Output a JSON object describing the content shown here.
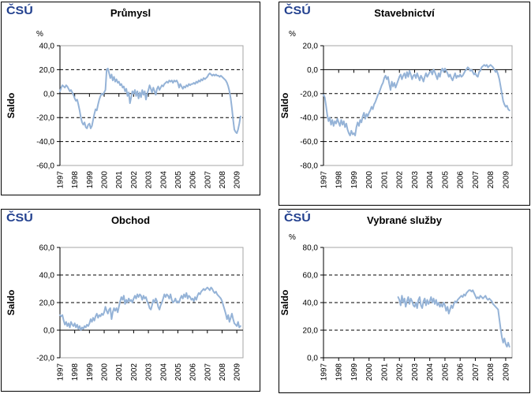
{
  "logo": {
    "text": "ČSÚ",
    "color": "#23418F"
  },
  "chart_data": [
    {
      "type": "line",
      "title": "Průmysl",
      "unit_label": "%",
      "ylabel": "Saldo",
      "ylim": [
        -60,
        40
      ],
      "yticks": [
        40,
        20,
        0,
        -20,
        -40,
        -60
      ],
      "ytick_labels": [
        "40,0",
        "20,0",
        "0,0",
        "-20,0",
        "-40,0",
        "-60,0"
      ],
      "xlim": [
        1997,
        2009.42
      ],
      "xtick_labels": [
        "1997",
        "1998",
        "1999",
        "2000",
        "2001",
        "2002",
        "2003",
        "2004",
        "2005",
        "2006",
        "2007",
        "2008",
        "2009"
      ],
      "grid": "horizontal dashed, solid line at zero",
      "legend": "none",
      "line_color": "#95B3D7",
      "series": [
        {
          "name": "Saldo",
          "start_year": 1997,
          "interval": "monthly",
          "values": [
            2,
            5,
            7,
            6,
            5,
            7,
            6,
            4,
            2,
            3,
            1,
            -1,
            -4,
            -6,
            -5,
            -9,
            -14,
            -20,
            -24,
            -26,
            -24,
            -28,
            -29,
            -26,
            -25,
            -29,
            -27,
            -22,
            -17,
            -13,
            -14,
            -9,
            -5,
            -2,
            0,
            -1,
            1,
            3,
            20,
            21,
            17,
            13,
            16,
            11,
            14,
            10,
            12,
            9,
            10,
            7,
            8,
            5,
            6,
            2,
            4,
            -2,
            1,
            -8,
            -3,
            2,
            0,
            3,
            -2,
            2,
            -4,
            1,
            -3,
            3,
            -1,
            2,
            -5,
            0,
            3,
            7,
            4,
            1,
            5,
            2,
            -1,
            4,
            6,
            3,
            5,
            7,
            6,
            8,
            9,
            10,
            9,
            11,
            10,
            11,
            9,
            11,
            10,
            11,
            9,
            5,
            8,
            6,
            4,
            6,
            5,
            7,
            6,
            8,
            7,
            8,
            8,
            9,
            8,
            10,
            9,
            11,
            10,
            12,
            11,
            13,
            12,
            13,
            14,
            16,
            17,
            16,
            15,
            16,
            15,
            16,
            15,
            15,
            14,
            15,
            14,
            13,
            12,
            11,
            9,
            6,
            2,
            -4,
            -12,
            -22,
            -30,
            -32,
            -33,
            -30,
            -25,
            -19
          ]
        }
      ]
    },
    {
      "type": "line",
      "title": "Stavebnictví",
      "unit_label": "%",
      "ylabel": "Saldo",
      "ylim": [
        -80,
        20
      ],
      "yticks": [
        20,
        0,
        -20,
        -40,
        -60,
        -80
      ],
      "ytick_labels": [
        "20,0",
        "0,0",
        "-20,0",
        "-40,0",
        "-60,0",
        "-80,0"
      ],
      "xlim": [
        1997,
        2009.42
      ],
      "xtick_labels": [
        "1997",
        "1998",
        "1999",
        "2000",
        "2001",
        "2002",
        "2003",
        "2004",
        "2005",
        "2006",
        "2007",
        "2008",
        "2009"
      ],
      "grid": "horizontal dashed, solid line at zero",
      "legend": "none",
      "line_color": "#95B3D7",
      "series": [
        {
          "name": "Saldo",
          "start_year": 1997,
          "interval": "monthly",
          "values": [
            -21,
            -23,
            -30,
            -38,
            -43,
            -40,
            -46,
            -42,
            -47,
            -43,
            -45,
            -41,
            -44,
            -47,
            -42,
            -46,
            -43,
            -48,
            -45,
            -50,
            -53,
            -55,
            -51,
            -54,
            -53,
            -55,
            -48,
            -44,
            -47,
            -42,
            -44,
            -39,
            -36,
            -41,
            -37,
            -39,
            -36,
            -34,
            -31,
            -33,
            -29,
            -27,
            -24,
            -21,
            -19,
            -16,
            -13,
            -11,
            -7,
            -5,
            -8,
            -6,
            -12,
            -17,
            -10,
            -14,
            -11,
            -15,
            -12,
            -9,
            -6,
            -4,
            -8,
            -5,
            -3,
            -7,
            -2,
            -6,
            -1,
            -4,
            -8,
            -5,
            -4,
            -7,
            -3,
            -6,
            -9,
            -5,
            -7,
            -10,
            -6,
            -3,
            -6,
            -4,
            -2,
            -1,
            -4,
            0,
            -2,
            -5,
            -8,
            -3,
            -6,
            -1,
            1,
            -2,
            1,
            -1,
            -3,
            -6,
            -4,
            -7,
            -9,
            -6,
            -3,
            -7,
            -5,
            -6,
            -4,
            -6,
            -5,
            -3,
            -1,
            0,
            2,
            1,
            -1,
            0,
            -2,
            -4,
            -3,
            -5,
            -6,
            -2,
            -1,
            2,
            3,
            4,
            3,
            4,
            2,
            3,
            4,
            3,
            2,
            0,
            -2,
            -1,
            -4,
            -8,
            -14,
            -20,
            -26,
            -29,
            -31,
            -30,
            -33,
            -34
          ]
        }
      ]
    },
    {
      "type": "line",
      "title": "Obchod",
      "unit_label": "",
      "ylabel": "Saldo",
      "ylim": [
        -20,
        60
      ],
      "yticks": [
        60,
        40,
        20,
        0,
        -20
      ],
      "ytick_labels": [
        "60,0",
        "40,0",
        "20,0",
        "0,0",
        "-20,0"
      ],
      "xlim": [
        1997,
        2009.42
      ],
      "xtick_labels": [
        "1997",
        "1998",
        "1999",
        "2000",
        "2001",
        "2002",
        "2003",
        "2004",
        "2005",
        "2006",
        "2007",
        "2008",
        "2009"
      ],
      "grid": "horizontal dashed, solid line at zero",
      "legend": "none",
      "line_color": "#95B3D7",
      "series": [
        {
          "name": "Saldo",
          "start_year": 1997,
          "interval": "monthly",
          "values": [
            11,
            10,
            11,
            7,
            4,
            6,
            3,
            5,
            2,
            6,
            4,
            3,
            5,
            2,
            4,
            1,
            3,
            0,
            2,
            1,
            3,
            2,
            4,
            3,
            5,
            8,
            6,
            9,
            7,
            10,
            12,
            9,
            11,
            10,
            12,
            11,
            13,
            17,
            14,
            12,
            15,
            16,
            8,
            13,
            16,
            14,
            16,
            13,
            17,
            21,
            24,
            22,
            25,
            19,
            22,
            20,
            23,
            21,
            22,
            20,
            23,
            25,
            23,
            26,
            24,
            26,
            25,
            22,
            25,
            23,
            24,
            21,
            19,
            16,
            15,
            18,
            22,
            20,
            23,
            21,
            17,
            15,
            18,
            20,
            23,
            26,
            24,
            26,
            25,
            23,
            26,
            22,
            20,
            21,
            23,
            20,
            21,
            20,
            23,
            25,
            23,
            26,
            24,
            27,
            23,
            25,
            24,
            22,
            23,
            21,
            24,
            22,
            25,
            27,
            26,
            28,
            29,
            30,
            29,
            30,
            31,
            30,
            29,
            31,
            30,
            28,
            27,
            28,
            26,
            25,
            24,
            23,
            21,
            18,
            15,
            12,
            8,
            11,
            6,
            9,
            12,
            8,
            5,
            4,
            3,
            6,
            2,
            3
          ]
        }
      ]
    },
    {
      "type": "line",
      "title": "Vybrané služby",
      "unit_label": "%",
      "ylabel": "Saldo",
      "ylim": [
        0,
        80
      ],
      "yticks": [
        80,
        60,
        40,
        20,
        0
      ],
      "ytick_labels": [
        "80,0",
        "60,0",
        "40,0",
        "20,0",
        "0,0"
      ],
      "xlim": [
        1997,
        2009.42
      ],
      "xtick_labels": [
        "1997",
        "1998",
        "1999",
        "2000",
        "2001",
        "2002",
        "2003",
        "2004",
        "2005",
        "2006",
        "2007",
        "2008",
        "2009"
      ],
      "grid": "horizontal dashed, solid axis line at zero",
      "legend": "none",
      "line_color": "#95B3D7",
      "series": [
        {
          "name": "Saldo",
          "start_year": 2001.9167,
          "interval": "monthly",
          "values": [
            44,
            42,
            38,
            45,
            40,
            43,
            37,
            41,
            44,
            39,
            43,
            41,
            38,
            37,
            40,
            36,
            42,
            44,
            38,
            36,
            41,
            43,
            38,
            42,
            39,
            41,
            44,
            40,
            43,
            39,
            42,
            38,
            40,
            37,
            39,
            37,
            40,
            38,
            34,
            37,
            32,
            35,
            38,
            36,
            39,
            41,
            40,
            42,
            43,
            44,
            45,
            44,
            46,
            45,
            47,
            48,
            49,
            49,
            48,
            49,
            47,
            45,
            43,
            44,
            43,
            45,
            44,
            43,
            44,
            45,
            43,
            42,
            43,
            42,
            41,
            39,
            38,
            37,
            36,
            35,
            28,
            21,
            15,
            11,
            14,
            10,
            8,
            11,
            8
          ]
        }
      ]
    }
  ]
}
